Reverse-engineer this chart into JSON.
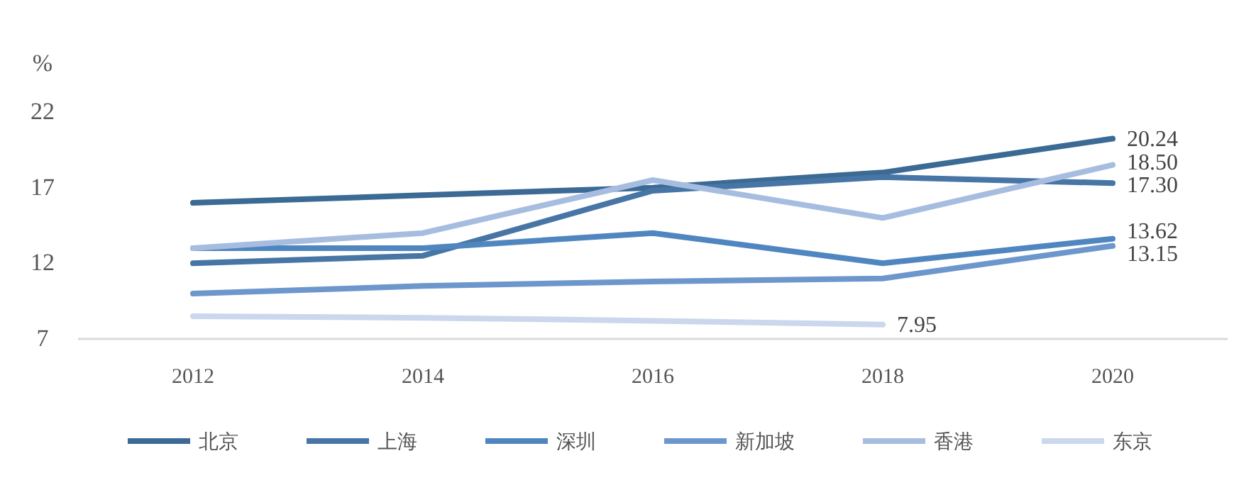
{
  "chart_data": {
    "type": "line",
    "ylabel": "%",
    "categories": [
      "2012",
      "2014",
      "2016",
      "2018",
      "2020"
    ],
    "ylim": [
      7,
      22
    ],
    "yticks": [
      7,
      12,
      17,
      22
    ],
    "grid": false,
    "legend": "bottom",
    "marker": "none",
    "line_style": "solid",
    "series": [
      {
        "name": "北京",
        "color": "#3b6a94",
        "values": [
          16,
          16.5,
          17,
          18,
          20.24
        ],
        "value_labels": [
          null,
          null,
          null,
          null,
          "20.24"
        ]
      },
      {
        "name": "上海",
        "color": "#4775a5",
        "values": [
          12,
          12.5,
          16.8,
          17.7,
          17.3
        ],
        "value_labels": [
          null,
          null,
          null,
          null,
          "17.30"
        ]
      },
      {
        "name": "深圳",
        "color": "#5086c0",
        "values": [
          13,
          13,
          14,
          12,
          13.62
        ],
        "value_labels": [
          null,
          null,
          null,
          null,
          "13.62"
        ]
      },
      {
        "name": "新加坡",
        "color": "#6d97cc",
        "values": [
          10,
          10.5,
          10.8,
          11,
          13.15
        ],
        "value_labels": [
          null,
          null,
          null,
          null,
          "13.15"
        ]
      },
      {
        "name": "香港",
        "color": "#a6bde0",
        "values": [
          13,
          14,
          17.5,
          15,
          18.5
        ],
        "value_labels": [
          null,
          null,
          null,
          null,
          "18.50"
        ]
      },
      {
        "name": "东京",
        "color": "#cad7ec",
        "values": [
          8.5,
          8.4,
          8.2,
          7.95,
          null
        ],
        "value_labels": [
          null,
          null,
          null,
          "7.95",
          null
        ]
      }
    ]
  }
}
